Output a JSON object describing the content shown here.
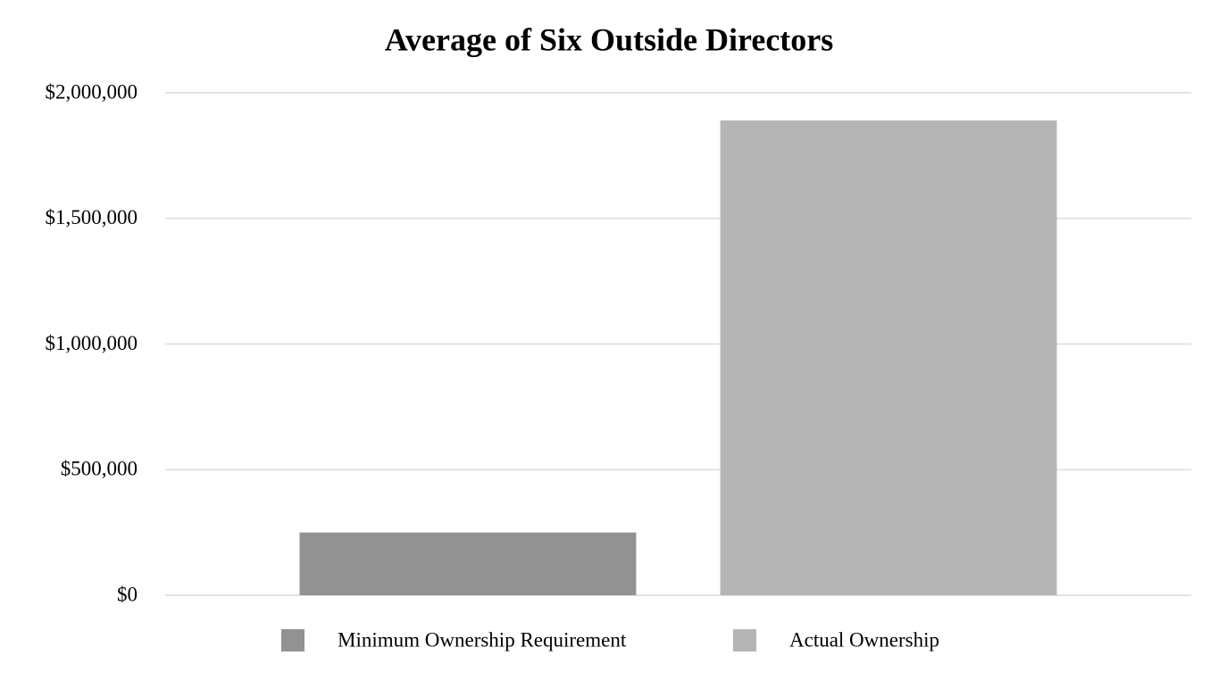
{
  "chart_data": {
    "type": "bar",
    "title": "Average of Six Outside Directors",
    "categories": [
      null
    ],
    "series": [
      {
        "name": "Minimum Ownership Requirement",
        "color": "#929292",
        "values": [
          250000
        ]
      },
      {
        "name": "Actual Ownership",
        "color": "#b5b5b5",
        "values": [
          1890000
        ]
      }
    ],
    "ylim": [
      0,
      2000000
    ],
    "yticks": [
      {
        "value": 0,
        "label": "$0"
      },
      {
        "value": 500000,
        "label": "$500,000"
      },
      {
        "value": 1000000,
        "label": "$1,000,000"
      },
      {
        "value": 1500000,
        "label": "$1,500,000"
      },
      {
        "value": 2000000,
        "label": "$2,000,000"
      }
    ],
    "grid": true,
    "legend": "bottom"
  }
}
